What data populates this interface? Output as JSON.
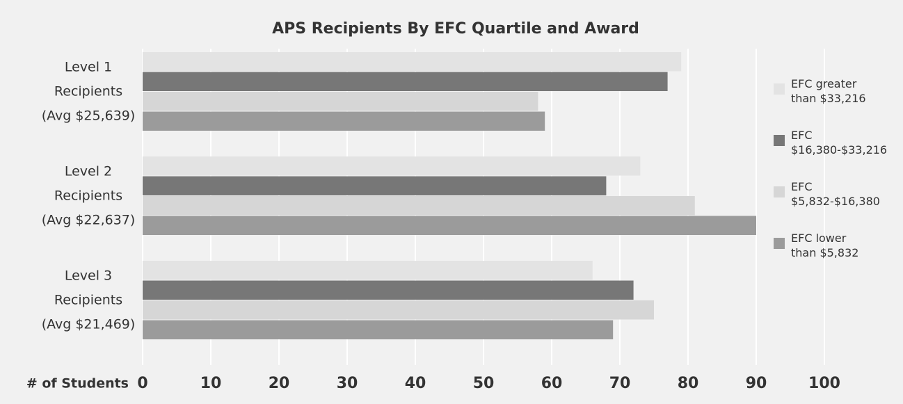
{
  "chart_data": {
    "type": "hbar",
    "title": "APS Recipients By EFC Quartile and Award",
    "x_label": "# of Students",
    "categories": [
      [
        "Level 1",
        "Recipients",
        "(Avg $25,639)"
      ],
      [
        "Level 2",
        "Recipients",
        "(Avg $22,637)"
      ],
      [
        "Level 3",
        "Recipients",
        "(Avg $21,469)"
      ]
    ],
    "series": [
      {
        "name": "EFC greater than $33,216",
        "color": "#e3e3e3",
        "values": [
          79,
          73,
          66
        ]
      },
      {
        "name": "EFC $16,380-$33,216",
        "color": "#777777",
        "values": [
          77,
          68,
          72
        ]
      },
      {
        "name": "EFC $5,832-$16,380",
        "color": "#d6d6d6",
        "values": [
          58,
          81,
          75
        ]
      },
      {
        "name": "EFC lower than $5,832",
        "color": "#9b9b9b",
        "values": [
          59,
          90,
          69
        ]
      }
    ],
    "xlim": [
      0,
      100
    ],
    "xticks": [
      0,
      10,
      20,
      30,
      40,
      50,
      60,
      70,
      80,
      90,
      100
    ],
    "grid": true,
    "legend": "right"
  }
}
